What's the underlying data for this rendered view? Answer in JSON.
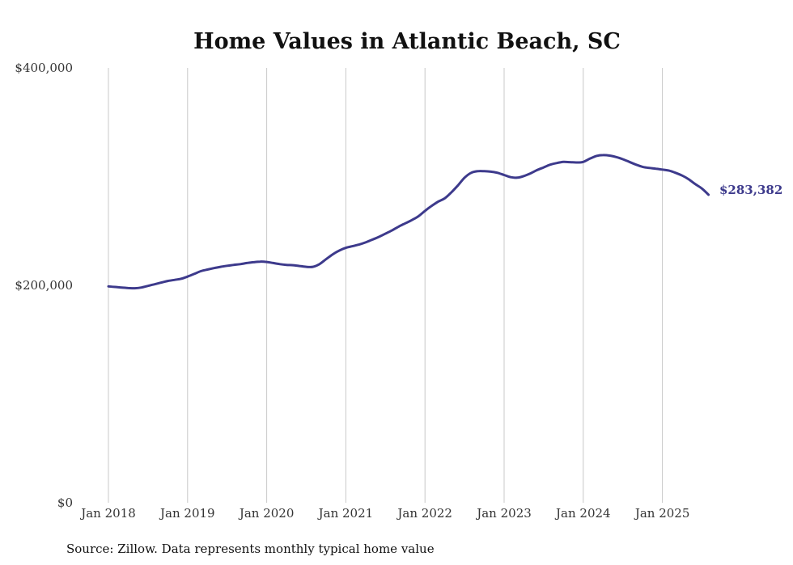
{
  "chart_data": {
    "type": "line",
    "title": "Home Values in Atlantic Beach, SC",
    "xlabel": "",
    "ylabel": "",
    "source": "Source: Zillow. Data represents monthly typical home value",
    "ylim": [
      0,
      400000
    ],
    "y_ticks": [
      {
        "value": 0,
        "label": "$0"
      },
      {
        "value": 200000,
        "label": "$200,000"
      },
      {
        "value": 400000,
        "label": "$400,000"
      }
    ],
    "x_ticks": [
      {
        "value": "2018-01",
        "label": "Jan 2018"
      },
      {
        "value": "2019-01",
        "label": "Jan 2019"
      },
      {
        "value": "2020-01",
        "label": "Jan 2020"
      },
      {
        "value": "2021-01",
        "label": "Jan 2021"
      },
      {
        "value": "2022-01",
        "label": "Jan 2022"
      },
      {
        "value": "2023-01",
        "label": "Jan 2023"
      },
      {
        "value": "2024-01",
        "label": "Jan 2024"
      },
      {
        "value": "2025-01",
        "label": "Jan 2025"
      }
    ],
    "grid": "vertical",
    "line_color": "#3d3a8c",
    "end_label": "$283,382",
    "series": [
      {
        "x": [
          "2018-01",
          "2018-02",
          "2018-03",
          "2018-04",
          "2018-05",
          "2018-06",
          "2018-07",
          "2018-08",
          "2018-09",
          "2018-10",
          "2018-11",
          "2018-12",
          "2019-01",
          "2019-02",
          "2019-03",
          "2019-04",
          "2019-05",
          "2019-06",
          "2019-07",
          "2019-08",
          "2019-09",
          "2019-10",
          "2019-11",
          "2019-12",
          "2020-01",
          "2020-02",
          "2020-03",
          "2020-04",
          "2020-05",
          "2020-06",
          "2020-07",
          "2020-08",
          "2020-09",
          "2020-10",
          "2020-11",
          "2020-12",
          "2021-01",
          "2021-02",
          "2021-03",
          "2021-04",
          "2021-05",
          "2021-06",
          "2021-07",
          "2021-08",
          "2021-09",
          "2021-10",
          "2021-11",
          "2021-12",
          "2022-01",
          "2022-02",
          "2022-03",
          "2022-04",
          "2022-05",
          "2022-06",
          "2022-07",
          "2022-08",
          "2022-09",
          "2022-10",
          "2022-11",
          "2022-12",
          "2023-01",
          "2023-02",
          "2023-03",
          "2023-04",
          "2023-05",
          "2023-06",
          "2023-07",
          "2023-08",
          "2023-09",
          "2023-10",
          "2023-11",
          "2023-12",
          "2024-01",
          "2024-02",
          "2024-03",
          "2024-04",
          "2024-05",
          "2024-06",
          "2024-07",
          "2024-08",
          "2024-09",
          "2024-10",
          "2024-11",
          "2024-12",
          "2025-01",
          "2025-02",
          "2025-03",
          "2025-04",
          "2025-05",
          "2025-06",
          "2025-07",
          "2025-08"
        ],
        "values": [
          199000,
          198500,
          198000,
          197500,
          197300,
          198000,
          199500,
          201000,
          202500,
          204000,
          205000,
          206000,
          208000,
          210500,
          213000,
          214500,
          215800,
          217000,
          218000,
          218800,
          219500,
          220500,
          221300,
          221800,
          221500,
          220500,
          219500,
          218800,
          218500,
          217800,
          217000,
          217000,
          219500,
          224000,
          228500,
          232000,
          234500,
          236000,
          237500,
          239500,
          242000,
          244500,
          247500,
          250500,
          254000,
          257000,
          260000,
          263500,
          268500,
          273000,
          277000,
          280000,
          285500,
          292000,
          299000,
          303500,
          305000,
          305000,
          304500,
          303500,
          301500,
          299500,
          299000,
          300500,
          303000,
          306000,
          308500,
          311000,
          312500,
          313500,
          313300,
          313000,
          313500,
          316500,
          319000,
          319800,
          319300,
          318000,
          316000,
          313500,
          311000,
          309000,
          308000,
          307300,
          306500,
          305500,
          303500,
          301000,
          297500,
          293000,
          289000,
          283382
        ]
      }
    ]
  }
}
